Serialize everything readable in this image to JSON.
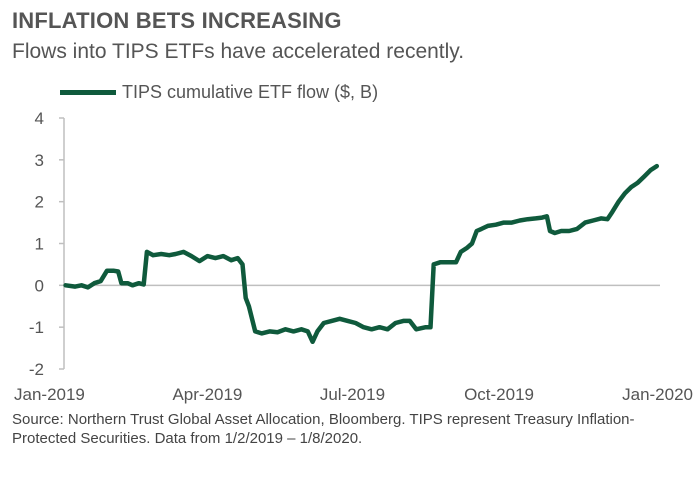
{
  "header": {
    "title": "INFLATION BETS INCREASING",
    "subtitle": "Flows into TIPS ETFs have accelerated recently."
  },
  "footer": {
    "source": "Source: Northern Trust Global Asset Allocation, Bloomberg. TIPS represent Treasury Inflation-Protected Securities. Data from 1/2/2019 – 1/8/2020."
  },
  "colors": {
    "series": "#0f5a3c",
    "axis": "#bfbfbf",
    "text": "#555555"
  },
  "chart_data": {
    "type": "line",
    "title": "INFLATION BETS INCREASING",
    "subtitle": "Flows into TIPS ETFs have accelerated recently.",
    "xlabel": "",
    "ylabel": "",
    "ylim": [
      -2,
      4
    ],
    "yticks": [
      "-2",
      "-1",
      "0",
      "1",
      "2",
      "3",
      "4"
    ],
    "xlim": [
      "2019-01-01",
      "2020-01-10"
    ],
    "xticks": [
      {
        "date": "2019-01-01",
        "label": "Jan-2019"
      },
      {
        "date": "2019-04-01",
        "label": "Apr-2019"
      },
      {
        "date": "2019-07-01",
        "label": "Jul-2019"
      },
      {
        "date": "2019-10-01",
        "label": "Oct-2019"
      },
      {
        "date": "2020-01-01",
        "label": "Jan-2020"
      }
    ],
    "grid": false,
    "legend": "top-left",
    "series": [
      {
        "name": "TIPS cumulative ETF flow ($, B)",
        "points": [
          [
            "2019-01-02",
            0.0
          ],
          [
            "2019-01-08",
            -0.03
          ],
          [
            "2019-01-12",
            0.0
          ],
          [
            "2019-01-16",
            -0.05
          ],
          [
            "2019-01-20",
            0.05
          ],
          [
            "2019-01-24",
            0.1
          ],
          [
            "2019-01-28",
            0.35
          ],
          [
            "2019-02-01",
            0.35
          ],
          [
            "2019-02-04",
            0.33
          ],
          [
            "2019-02-06",
            0.05
          ],
          [
            "2019-02-10",
            0.05
          ],
          [
            "2019-02-13",
            0.0
          ],
          [
            "2019-02-17",
            0.05
          ],
          [
            "2019-02-20",
            0.02
          ],
          [
            "2019-02-22",
            0.8
          ],
          [
            "2019-02-26",
            0.72
          ],
          [
            "2019-03-03",
            0.75
          ],
          [
            "2019-03-08",
            0.72
          ],
          [
            "2019-03-12",
            0.75
          ],
          [
            "2019-03-17",
            0.8
          ],
          [
            "2019-03-22",
            0.7
          ],
          [
            "2019-03-27",
            0.58
          ],
          [
            "2019-04-01",
            0.7
          ],
          [
            "2019-04-06",
            0.65
          ],
          [
            "2019-04-11",
            0.7
          ],
          [
            "2019-04-16",
            0.6
          ],
          [
            "2019-04-20",
            0.65
          ],
          [
            "2019-04-23",
            0.5
          ],
          [
            "2019-04-25",
            -0.3
          ],
          [
            "2019-04-27",
            -0.5
          ],
          [
            "2019-05-01",
            -1.1
          ],
          [
            "2019-05-05",
            -1.15
          ],
          [
            "2019-05-10",
            -1.1
          ],
          [
            "2019-05-15",
            -1.12
          ],
          [
            "2019-05-20",
            -1.05
          ],
          [
            "2019-05-25",
            -1.1
          ],
          [
            "2019-05-30",
            -1.05
          ],
          [
            "2019-06-03",
            -1.1
          ],
          [
            "2019-06-06",
            -1.35
          ],
          [
            "2019-06-09",
            -1.1
          ],
          [
            "2019-06-13",
            -0.9
          ],
          [
            "2019-06-18",
            -0.85
          ],
          [
            "2019-06-23",
            -0.8
          ],
          [
            "2019-06-28",
            -0.85
          ],
          [
            "2019-07-03",
            -0.9
          ],
          [
            "2019-07-08",
            -1.0
          ],
          [
            "2019-07-13",
            -1.05
          ],
          [
            "2019-07-18",
            -1.0
          ],
          [
            "2019-07-23",
            -1.05
          ],
          [
            "2019-07-28",
            -0.9
          ],
          [
            "2019-08-02",
            -0.85
          ],
          [
            "2019-08-06",
            -0.85
          ],
          [
            "2019-08-10",
            -1.05
          ],
          [
            "2019-08-16",
            -1.0
          ],
          [
            "2019-08-19",
            -1.0
          ],
          [
            "2019-08-21",
            0.5
          ],
          [
            "2019-08-25",
            0.55
          ],
          [
            "2019-08-30",
            0.55
          ],
          [
            "2019-09-04",
            0.55
          ],
          [
            "2019-09-07",
            0.8
          ],
          [
            "2019-09-11",
            0.9
          ],
          [
            "2019-09-14",
            1.0
          ],
          [
            "2019-09-17",
            1.3
          ],
          [
            "2019-09-20",
            1.35
          ],
          [
            "2019-09-24",
            1.42
          ],
          [
            "2019-09-29",
            1.45
          ],
          [
            "2019-10-04",
            1.5
          ],
          [
            "2019-10-09",
            1.5
          ],
          [
            "2019-10-14",
            1.55
          ],
          [
            "2019-10-19",
            1.58
          ],
          [
            "2019-10-24",
            1.6
          ],
          [
            "2019-10-28",
            1.62
          ],
          [
            "2019-10-31",
            1.65
          ],
          [
            "2019-11-02",
            1.3
          ],
          [
            "2019-11-05",
            1.25
          ],
          [
            "2019-11-09",
            1.3
          ],
          [
            "2019-11-14",
            1.3
          ],
          [
            "2019-11-19",
            1.35
          ],
          [
            "2019-11-24",
            1.5
          ],
          [
            "2019-11-29",
            1.55
          ],
          [
            "2019-12-04",
            1.6
          ],
          [
            "2019-12-08",
            1.58
          ],
          [
            "2019-12-11",
            1.75
          ],
          [
            "2019-12-15",
            2.0
          ],
          [
            "2019-12-19",
            2.2
          ],
          [
            "2019-12-23",
            2.35
          ],
          [
            "2019-12-27",
            2.45
          ],
          [
            "2019-12-31",
            2.6
          ],
          [
            "2020-01-04",
            2.75
          ],
          [
            "2020-01-08",
            2.85
          ]
        ]
      }
    ]
  }
}
